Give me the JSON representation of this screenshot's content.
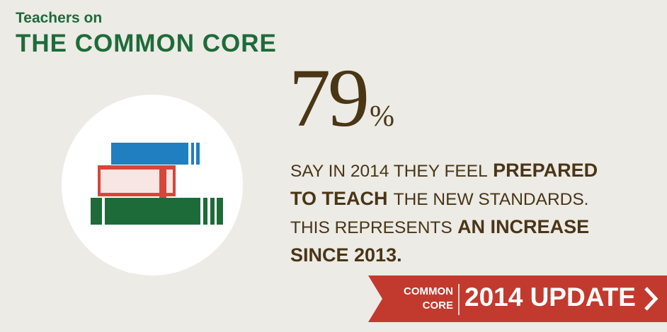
{
  "header": {
    "kicker": "Teachers on",
    "title": "THE COMMON CORE"
  },
  "stat": {
    "value": "79",
    "unit": "%"
  },
  "statement": {
    "lines": [
      {
        "segments": [
          {
            "text": "SAY IN 2014 THEY FEEL",
            "bold": false
          },
          {
            "text": "PREPARED",
            "bold": true
          }
        ]
      },
      {
        "segments": [
          {
            "text": "TO TEACH",
            "bold": true
          },
          {
            "text": "THE NEW STANDARDS.",
            "bold": false
          }
        ]
      },
      {
        "segments": [
          {
            "text": "THIS REPRESENTS",
            "bold": false
          },
          {
            "text": "AN INCREASE",
            "bold": true
          }
        ]
      },
      {
        "segments": [
          {
            "text": "SINCE 2013.",
            "bold": true
          }
        ]
      }
    ]
  },
  "banner": {
    "label_line1": "COMMON",
    "label_line2": "CORE",
    "title": "2014 UPDATE"
  }
}
